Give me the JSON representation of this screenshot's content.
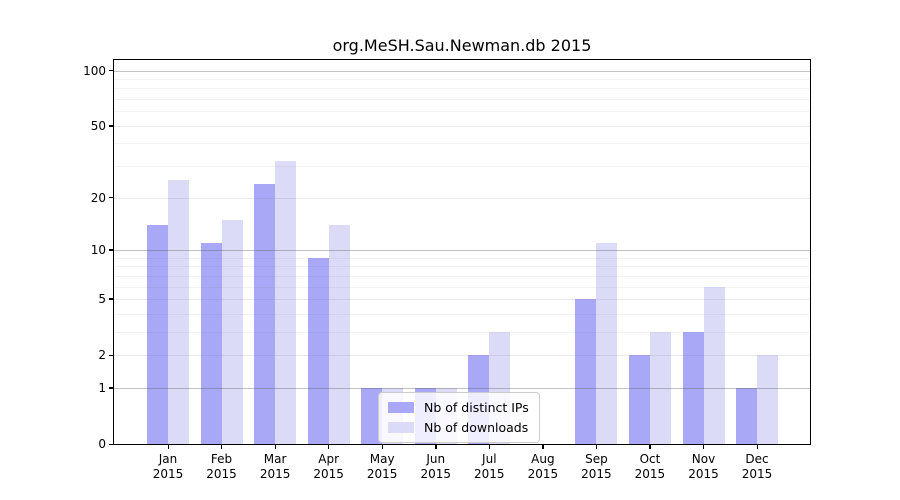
{
  "chart_data": {
    "type": "bar",
    "title": "org.MeSH.Sau.Newman.db 2015",
    "categories": [
      {
        "month": "Jan",
        "year": "2015"
      },
      {
        "month": "Feb",
        "year": "2015"
      },
      {
        "month": "Mar",
        "year": "2015"
      },
      {
        "month": "Apr",
        "year": "2015"
      },
      {
        "month": "May",
        "year": "2015"
      },
      {
        "month": "Jun",
        "year": "2015"
      },
      {
        "month": "Jul",
        "year": "2015"
      },
      {
        "month": "Aug",
        "year": "2015"
      },
      {
        "month": "Sep",
        "year": "2015"
      },
      {
        "month": "Oct",
        "year": "2015"
      },
      {
        "month": "Nov",
        "year": "2015"
      },
      {
        "month": "Dec",
        "year": "2015"
      }
    ],
    "series": [
      {
        "name": "Nb of distinct IPs",
        "color": "#a8a8f7",
        "values": [
          14,
          11,
          24,
          9,
          1,
          1,
          2,
          0,
          5,
          2,
          3,
          1
        ]
      },
      {
        "name": "Nb of downloads",
        "color": "#dbdbf8",
        "values": [
          25,
          15,
          32,
          14,
          1,
          1,
          3,
          0,
          11,
          3,
          6,
          2
        ]
      }
    ],
    "xlabel": "",
    "ylabel": "",
    "yscale": "log1p",
    "ylim": [
      0,
      114
    ],
    "yticks": [
      0,
      1,
      2,
      5,
      10,
      20,
      50,
      100
    ],
    "yticks_major_grid": [
      1,
      10,
      100
    ],
    "yticks_minor": [
      3,
      4,
      6,
      7,
      8,
      9,
      30,
      40,
      60,
      70,
      80,
      90
    ],
    "grid": "on",
    "legend_position": "lower center"
  }
}
